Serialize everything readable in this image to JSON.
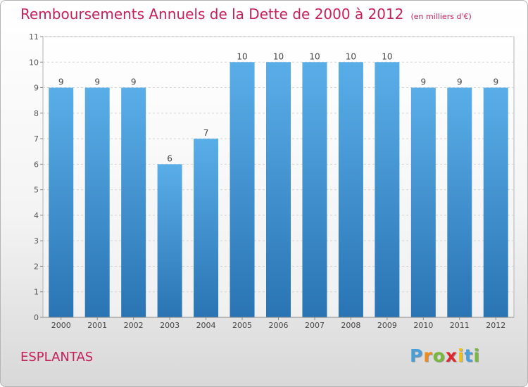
{
  "header": {
    "title": "Remboursements Annuels de la Dette de 2000 à 2012",
    "unit": "(en milliers d'€)"
  },
  "footer": {
    "commune": "ESPLANTAS",
    "logo": {
      "letters": [
        "P",
        "r",
        "o",
        "x",
        "i",
        "t",
        "i"
      ],
      "colors": [
        "#4a9fd8",
        "#f08a1c",
        "#78b83c",
        "#e0262e",
        "#f0c01c",
        "#4a9fd8",
        "#78b83c"
      ]
    }
  },
  "chart_data": {
    "type": "bar",
    "categories": [
      "2000",
      "2001",
      "2002",
      "2003",
      "2004",
      "2005",
      "2006",
      "2007",
      "2008",
      "2009",
      "2010",
      "2011",
      "2012"
    ],
    "values": [
      9,
      9,
      9,
      6,
      7,
      10,
      10,
      10,
      10,
      10,
      9,
      9,
      9
    ],
    "ylim": [
      0,
      11
    ],
    "yticks": [
      0,
      1,
      2,
      3,
      4,
      5,
      6,
      7,
      8,
      9,
      10,
      11
    ],
    "grid": true,
    "data_labels": true,
    "bar_color_top": "#5aaee8",
    "bar_color_bottom": "#2a74b4"
  }
}
